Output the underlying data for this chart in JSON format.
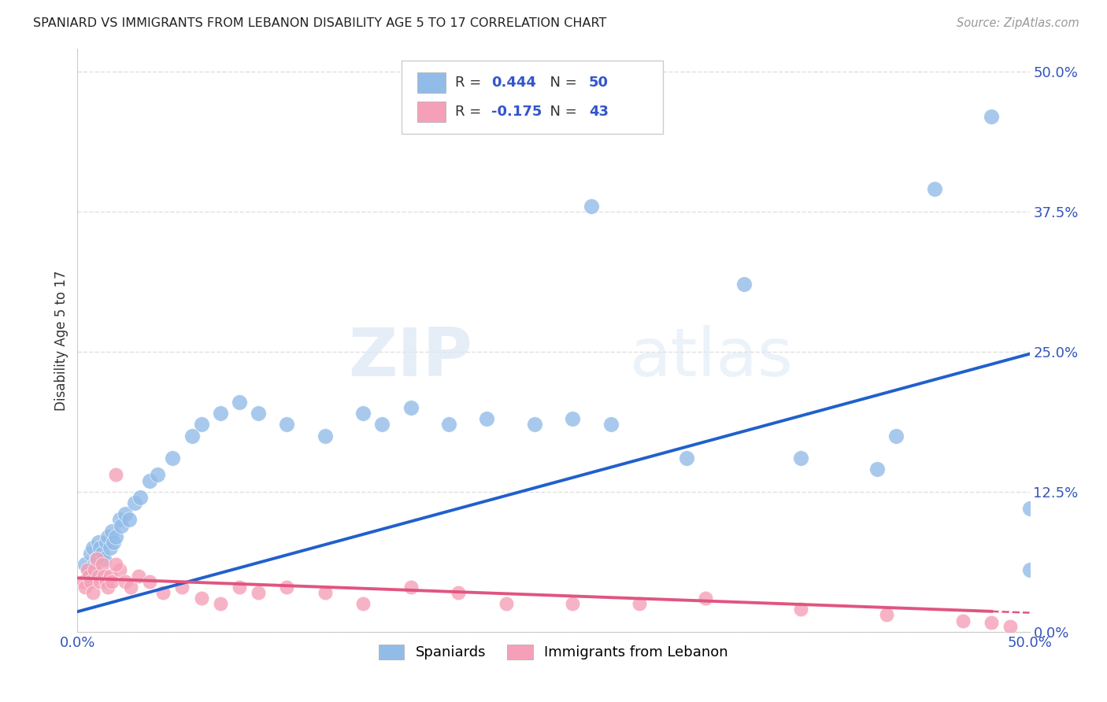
{
  "title": "SPANIARD VS IMMIGRANTS FROM LEBANON DISABILITY AGE 5 TO 17 CORRELATION CHART",
  "source": "Source: ZipAtlas.com",
  "ylabel": "Disability Age 5 to 17",
  "xlim": [
    0.0,
    0.5
  ],
  "ylim": [
    0.0,
    0.52
  ],
  "xticks": [
    0.0,
    0.125,
    0.25,
    0.375,
    0.5
  ],
  "xtick_labels": [
    "0.0%",
    "",
    "",
    "",
    "50.0%"
  ],
  "ytick_vals_right": [
    0.0,
    0.125,
    0.25,
    0.375,
    0.5
  ],
  "ytick_labels_right": [
    "0.0%",
    "12.5%",
    "25.0%",
    "37.5%",
    "50.0%"
  ],
  "spaniards_color": "#92bce8",
  "lebanon_color": "#f5a0b8",
  "trend_blue": "#2060cc",
  "trend_pink": "#e05580",
  "legend_R_blue": "0.444",
  "legend_N_blue": "50",
  "legend_R_pink": "-0.175",
  "legend_N_pink": "43",
  "spaniards_x": [
    0.004,
    0.006,
    0.007,
    0.008,
    0.009,
    0.01,
    0.011,
    0.012,
    0.013,
    0.014,
    0.015,
    0.016,
    0.017,
    0.018,
    0.019,
    0.02,
    0.022,
    0.023,
    0.025,
    0.027,
    0.03,
    0.033,
    0.038,
    0.042,
    0.05,
    0.06,
    0.065,
    0.075,
    0.085,
    0.095,
    0.11,
    0.13,
    0.15,
    0.16,
    0.175,
    0.195,
    0.215,
    0.24,
    0.26,
    0.28,
    0.27,
    0.35,
    0.38,
    0.42,
    0.45,
    0.48,
    0.5,
    0.5,
    0.43,
    0.32
  ],
  "spaniards_y": [
    0.06,
    0.055,
    0.07,
    0.075,
    0.06,
    0.065,
    0.08,
    0.075,
    0.07,
    0.065,
    0.08,
    0.085,
    0.075,
    0.09,
    0.08,
    0.085,
    0.1,
    0.095,
    0.105,
    0.1,
    0.115,
    0.12,
    0.135,
    0.14,
    0.155,
    0.175,
    0.185,
    0.195,
    0.205,
    0.195,
    0.185,
    0.175,
    0.195,
    0.185,
    0.2,
    0.185,
    0.19,
    0.185,
    0.19,
    0.185,
    0.38,
    0.31,
    0.155,
    0.145,
    0.395,
    0.46,
    0.11,
    0.055,
    0.175,
    0.155
  ],
  "lebanon_x": [
    0.003,
    0.004,
    0.005,
    0.006,
    0.007,
    0.008,
    0.009,
    0.01,
    0.011,
    0.012,
    0.013,
    0.014,
    0.015,
    0.016,
    0.017,
    0.018,
    0.02,
    0.022,
    0.025,
    0.028,
    0.032,
    0.038,
    0.045,
    0.055,
    0.065,
    0.075,
    0.085,
    0.095,
    0.11,
    0.13,
    0.15,
    0.175,
    0.2,
    0.225,
    0.26,
    0.295,
    0.33,
    0.38,
    0.425,
    0.465,
    0.48,
    0.49,
    0.02
  ],
  "lebanon_y": [
    0.045,
    0.04,
    0.055,
    0.05,
    0.045,
    0.035,
    0.055,
    0.065,
    0.05,
    0.045,
    0.06,
    0.05,
    0.045,
    0.04,
    0.05,
    0.045,
    0.14,
    0.055,
    0.045,
    0.04,
    0.05,
    0.045,
    0.035,
    0.04,
    0.03,
    0.025,
    0.04,
    0.035,
    0.04,
    0.035,
    0.025,
    0.04,
    0.035,
    0.025,
    0.025,
    0.025,
    0.03,
    0.02,
    0.015,
    0.01,
    0.008,
    0.005,
    0.06
  ],
  "watermark_zip": "ZIP",
  "watermark_atlas": "atlas",
  "background_color": "#ffffff",
  "grid_color": "#e0e0e0"
}
